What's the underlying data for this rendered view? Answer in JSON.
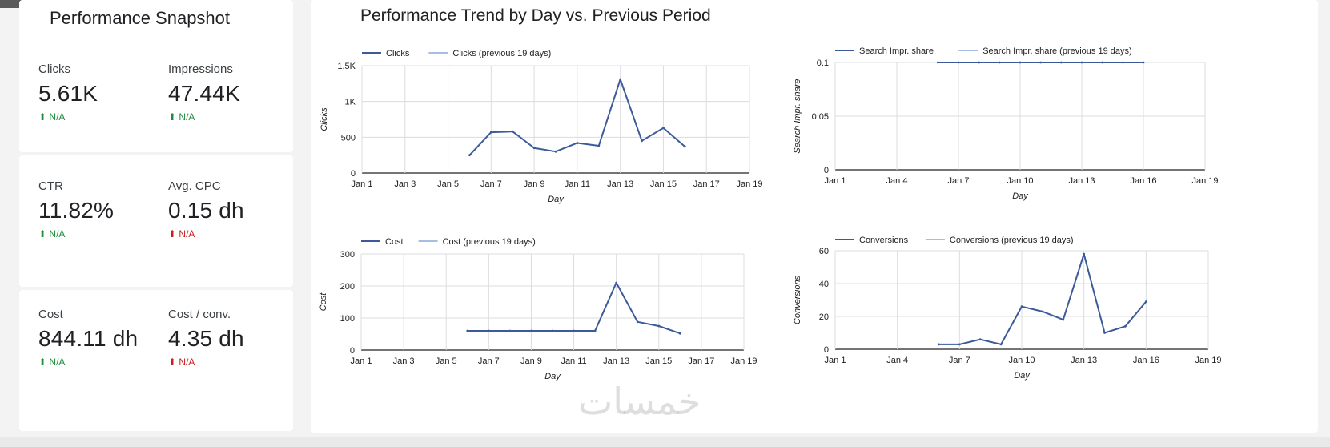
{
  "snapshot": {
    "title": "Performance Snapshot",
    "metrics": [
      {
        "label": "Clicks",
        "value": "5.61K",
        "delta": "N/A",
        "trend": "up",
        "color": "#1e8e3e"
      },
      {
        "label": "Impressions",
        "value": "47.44K",
        "delta": "N/A",
        "trend": "up",
        "color": "#1e8e3e"
      },
      {
        "label": "CTR",
        "value": "11.82%",
        "delta": "N/A",
        "trend": "up",
        "color": "#1e8e3e"
      },
      {
        "label": "Avg. CPC",
        "value": "0.15 dh",
        "delta": "N/A",
        "trend": "up",
        "color": "#c5221f"
      },
      {
        "label": "Cost",
        "value": "844.11 dh",
        "delta": "N/A",
        "trend": "up",
        "color": "#1e8e3e"
      },
      {
        "label": "Cost / conv.",
        "value": "4.35 dh",
        "delta": "N/A",
        "trend": "up",
        "color": "#c5221f"
      }
    ]
  },
  "trend": {
    "title": "Performance Trend by Day vs. Previous Period"
  },
  "watermark": "خمسات",
  "chart_data": [
    {
      "type": "line",
      "id": "clicks",
      "ylabel": "Clicks",
      "xlabel": "Day",
      "ylim": [
        0,
        1500
      ],
      "yticks": [
        0,
        500,
        1000,
        1500
      ],
      "ytick_labels": [
        "0",
        "500",
        "1K",
        "1.5K"
      ],
      "xlim": [
        1,
        19
      ],
      "xticks": [
        1,
        3,
        5,
        7,
        9,
        11,
        13,
        15,
        17,
        19
      ],
      "xtick_labels": [
        "Jan 1",
        "Jan 3",
        "Jan 5",
        "Jan 7",
        "Jan 9",
        "Jan 11",
        "Jan 13",
        "Jan 15",
        "Jan 17",
        "Jan 19"
      ],
      "grid": true,
      "legend": "top-left",
      "series": [
        {
          "name": "Clicks",
          "color": "#3c5a9a",
          "x": [
            6,
            7,
            8,
            9,
            10,
            11,
            12,
            13,
            14,
            15,
            16
          ],
          "values": [
            250,
            570,
            580,
            350,
            300,
            420,
            380,
            1310,
            450,
            630,
            370
          ]
        },
        {
          "name": "Clicks (previous 19 days)",
          "color": "#a8bde3",
          "x": [],
          "values": []
        }
      ]
    },
    {
      "type": "line",
      "id": "search-impr-share",
      "ylabel": "Search Impr. share",
      "xlabel": "Day",
      "ylim": [
        0,
        0.1
      ],
      "yticks": [
        0,
        0.05,
        0.1
      ],
      "ytick_labels": [
        "0",
        "0.05",
        "0.1"
      ],
      "xlim": [
        1,
        19
      ],
      "xticks": [
        1,
        4,
        7,
        10,
        13,
        16,
        19
      ],
      "xtick_labels": [
        "Jan 1",
        "Jan 4",
        "Jan 7",
        "Jan 10",
        "Jan 13",
        "Jan 16",
        "Jan 19"
      ],
      "grid": true,
      "legend": "top-left",
      "series": [
        {
          "name": "Search Impr. share",
          "color": "#3c5a9a",
          "x": [
            6,
            7,
            8,
            9,
            10,
            11,
            12,
            13,
            14,
            15,
            16
          ],
          "values": [
            0.1,
            0.1,
            0.1,
            0.1,
            0.1,
            0.1,
            0.1,
            0.1,
            0.1,
            0.1,
            0.1
          ]
        },
        {
          "name": "Search Impr. share (previous 19 days)",
          "color": "#a8bde3",
          "x": [],
          "values": []
        }
      ]
    },
    {
      "type": "line",
      "id": "cost",
      "ylabel": "Cost",
      "xlabel": "Day",
      "ylim": [
        0,
        300
      ],
      "yticks": [
        0,
        100,
        200,
        300
      ],
      "ytick_labels": [
        "0",
        "100",
        "200",
        "300"
      ],
      "xlim": [
        1,
        19
      ],
      "xticks": [
        1,
        3,
        5,
        7,
        9,
        11,
        13,
        15,
        17,
        19
      ],
      "xtick_labels": [
        "Jan 1",
        "Jan 3",
        "Jan 5",
        "Jan 7",
        "Jan 9",
        "Jan 11",
        "Jan 13",
        "Jan 15",
        "Jan 17",
        "Jan 19"
      ],
      "grid": true,
      "legend": "top-left",
      "series": [
        {
          "name": "Cost",
          "color": "#3c5a9a",
          "x": [
            6,
            7,
            8,
            9,
            10,
            11,
            12,
            13,
            14,
            15,
            16
          ],
          "values": [
            60,
            60,
            60,
            60,
            60,
            60,
            60,
            210,
            88,
            75,
            52
          ]
        },
        {
          "name": "Cost (previous 19 days)",
          "color": "#a8bde3",
          "x": [],
          "values": []
        }
      ]
    },
    {
      "type": "line",
      "id": "conversions",
      "ylabel": "Conversions",
      "xlabel": "Day",
      "ylim": [
        0,
        60
      ],
      "yticks": [
        0,
        20,
        40,
        60
      ],
      "ytick_labels": [
        "0",
        "20",
        "40",
        "60"
      ],
      "xlim": [
        1,
        19
      ],
      "xticks": [
        1,
        4,
        7,
        10,
        13,
        16,
        19
      ],
      "xtick_labels": [
        "Jan 1",
        "Jan 4",
        "Jan 7",
        "Jan 10",
        "Jan 13",
        "Jan 16",
        "Jan 19"
      ],
      "grid": true,
      "legend": "top-left",
      "series": [
        {
          "name": "Conversions",
          "color": "#3c5a9a",
          "x": [
            6,
            7,
            8,
            9,
            10,
            11,
            12,
            13,
            14,
            15,
            16
          ],
          "values": [
            3,
            3,
            6,
            3,
            26,
            23,
            18,
            58,
            10,
            14,
            29
          ]
        },
        {
          "name": "Conversions (previous 19 days)",
          "color": "#a8bde3",
          "x": [],
          "values": []
        }
      ]
    }
  ]
}
